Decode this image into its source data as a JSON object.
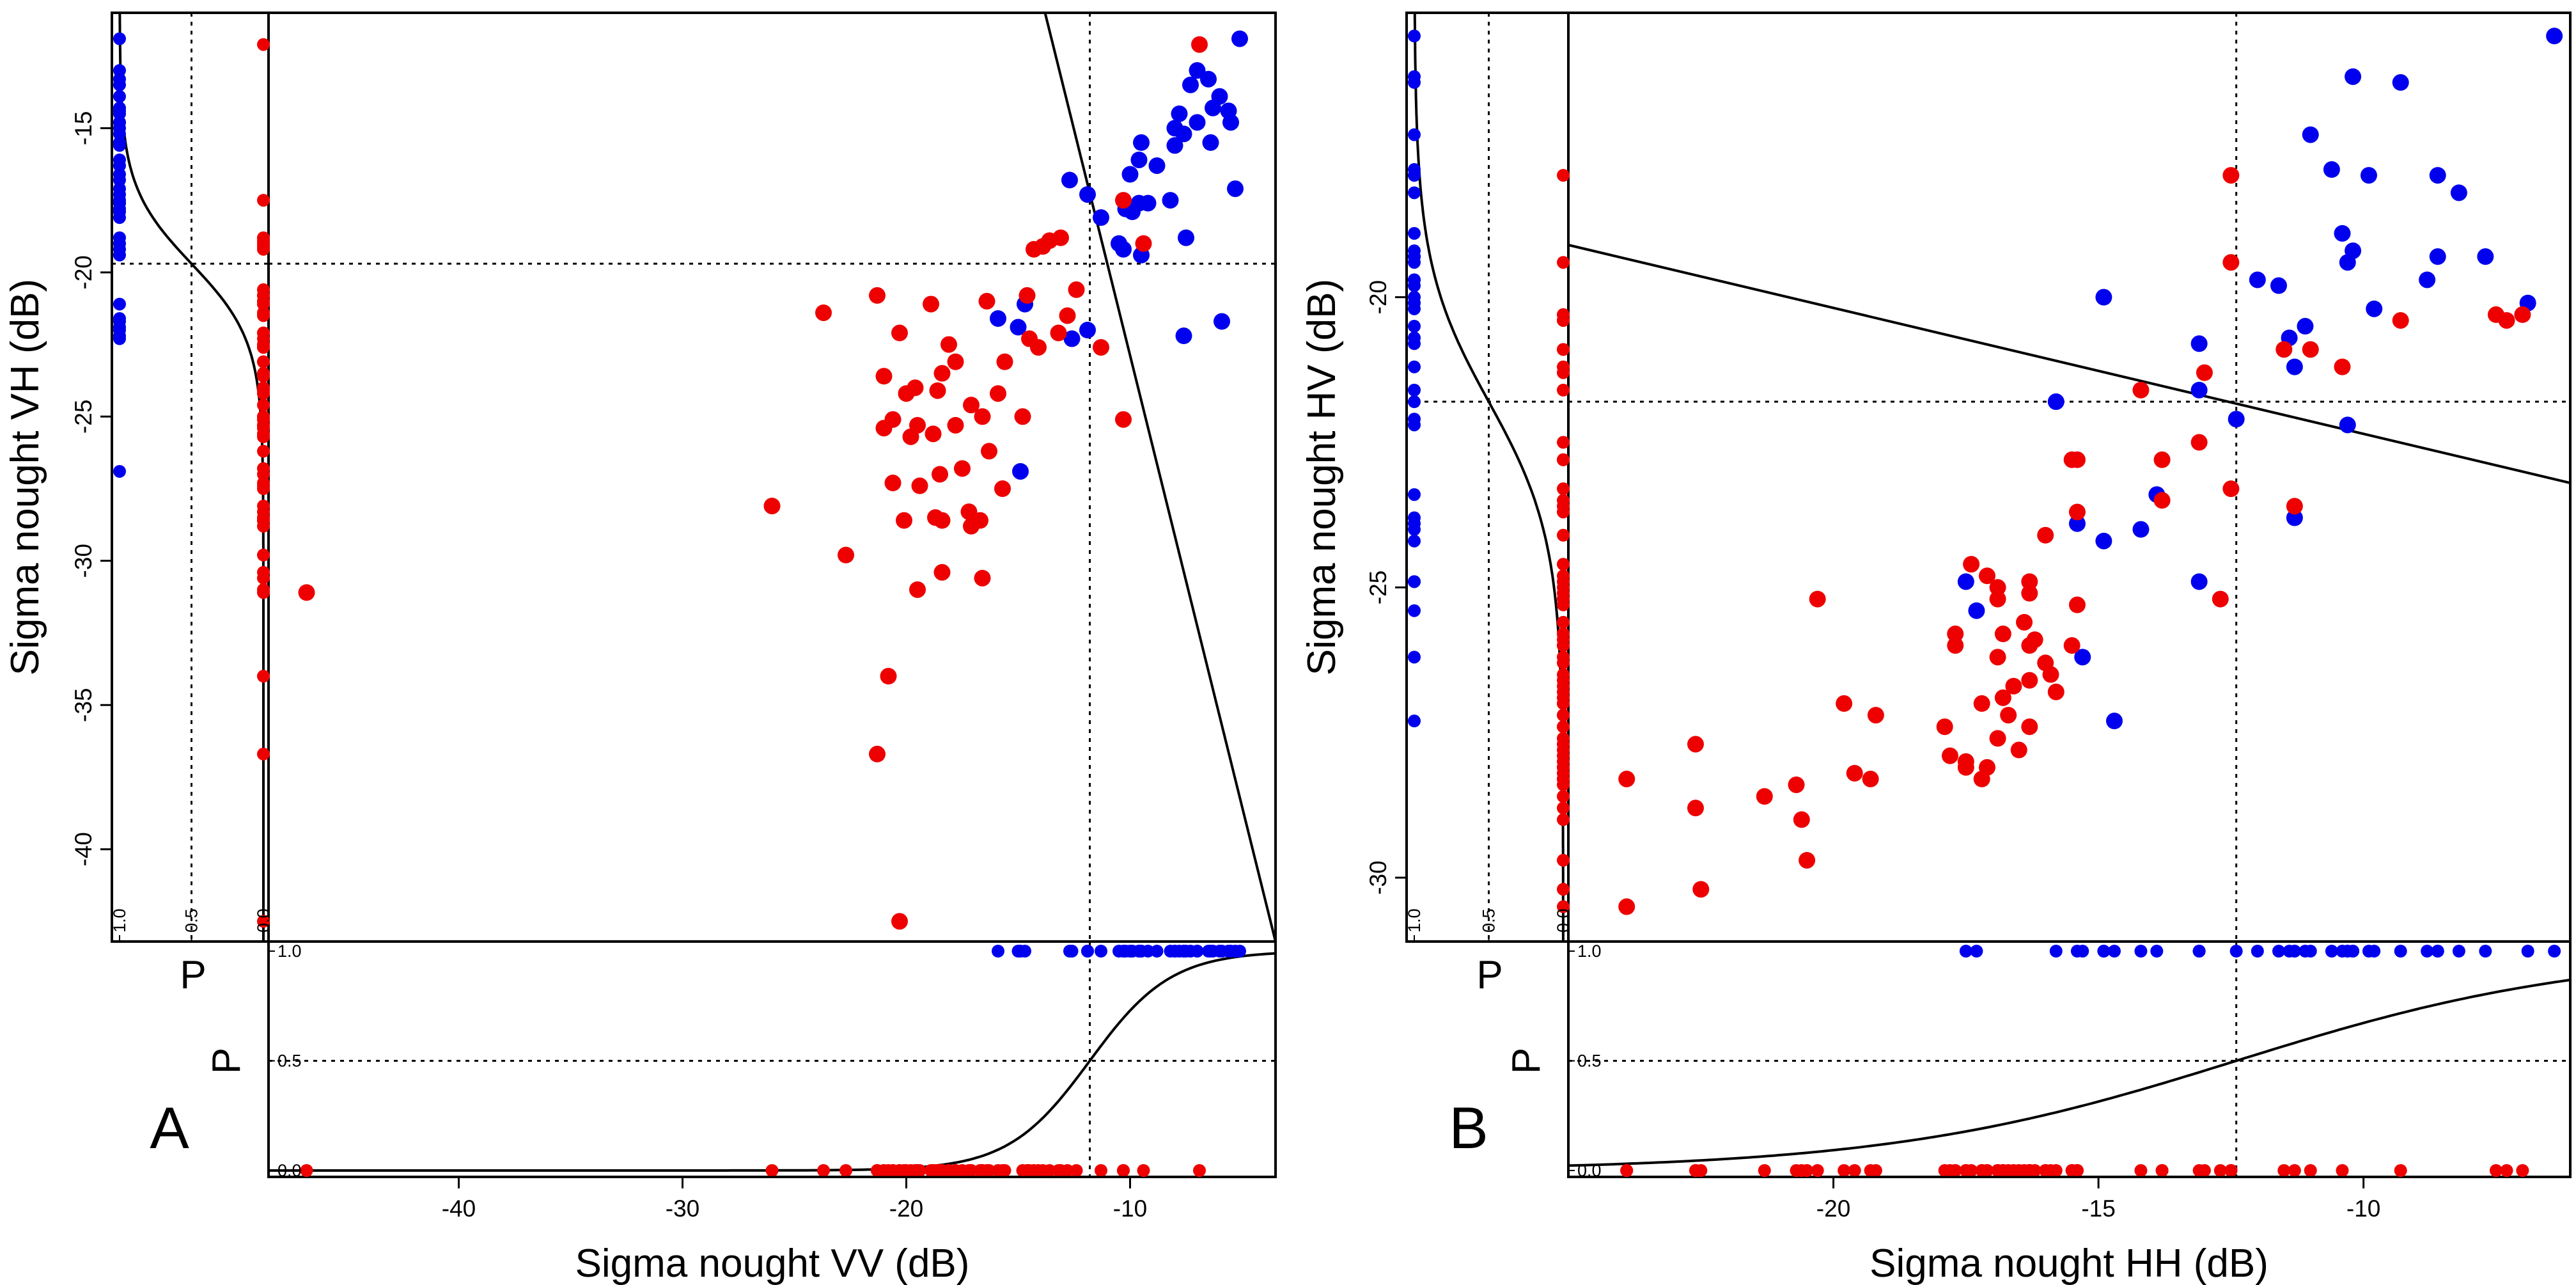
{
  "colors": {
    "class1": "#0000ee",
    "class0": "#ee0000",
    "line": "#000000"
  },
  "chart_data": [
    {
      "panel": "A",
      "type": "scatter",
      "xlabel": "Sigma nought VV (dB)",
      "ylabel": "Sigma nought VH (dB)",
      "xticks": [
        "-40",
        "-30",
        "-20",
        "-10"
      ],
      "yticks": [
        "-15",
        "-20",
        "-25",
        "-30",
        "-35",
        "-40"
      ],
      "xlim": [
        -48.5,
        -3.5
      ],
      "ylim": [
        -43.2,
        -11
      ],
      "prob_label": "P",
      "prob_ticks": [
        "0.0",
        "0.5",
        "1.0"
      ],
      "threshold_x": -11.8,
      "threshold_y": -19.7,
      "boundary": [
        [
          -13.8,
          -11
        ],
        [
          -3.5,
          -43.2
        ]
      ],
      "series": [
        {
          "class": "class1",
          "points": [
            [
              -5.1,
              -11.9
            ],
            [
              -7.0,
              -13.0
            ],
            [
              -6.5,
              -13.3
            ],
            [
              -7.3,
              -13.5
            ],
            [
              -6.0,
              -13.9
            ],
            [
              -6.3,
              -14.3
            ],
            [
              -5.6,
              -14.4
            ],
            [
              -7.8,
              -14.5
            ],
            [
              -5.5,
              -14.8
            ],
            [
              -7.0,
              -14.8
            ],
            [
              -8.0,
              -15.0
            ],
            [
              -7.6,
              -15.2
            ],
            [
              -9.5,
              -15.5
            ],
            [
              -6.4,
              -15.5
            ],
            [
              -8.0,
              -15.6
            ],
            [
              -9.6,
              -16.1
            ],
            [
              -8.8,
              -16.3
            ],
            [
              -10.0,
              -16.6
            ],
            [
              -12.7,
              -16.8
            ],
            [
              -11.9,
              -17.3
            ],
            [
              -8.2,
              -17.5
            ],
            [
              -9.2,
              -17.6
            ],
            [
              -9.6,
              -17.6
            ],
            [
              -10.2,
              -17.8
            ],
            [
              -9.9,
              -17.9
            ],
            [
              -11.3,
              -18.1
            ],
            [
              -7.5,
              -18.8
            ],
            [
              -5.3,
              -17.1
            ],
            [
              -10.5,
              -19.0
            ],
            [
              -10.3,
              -19.2
            ],
            [
              -9.5,
              -19.4
            ],
            [
              -15.9,
              -21.6
            ],
            [
              -7.6,
              -22.2
            ],
            [
              -5.9,
              -21.7
            ],
            [
              -12.6,
              -22.3
            ],
            [
              -14.7,
              -21.1
            ],
            [
              -15.0,
              -21.9
            ],
            [
              -11.9,
              -22.0
            ],
            [
              -14.9,
              -26.9
            ]
          ]
        },
        {
          "class": "class0",
          "points": [
            [
              -6.9,
              -12.1
            ],
            [
              -10.3,
              -17.5
            ],
            [
              -9.4,
              -19.0
            ],
            [
              -13.1,
              -18.8
            ],
            [
              -13.6,
              -18.9
            ],
            [
              -13.9,
              -19.1
            ],
            [
              -14.3,
              -19.2
            ],
            [
              -12.4,
              -20.6
            ],
            [
              -14.6,
              -20.8
            ],
            [
              -16.4,
              -21.0
            ],
            [
              -18.9,
              -21.1
            ],
            [
              -21.3,
              -20.8
            ],
            [
              -23.7,
              -21.4
            ],
            [
              -12.8,
              -21.5
            ],
            [
              -13.2,
              -22.1
            ],
            [
              -20.3,
              -22.1
            ],
            [
              -14.5,
              -22.3
            ],
            [
              -18.1,
              -22.5
            ],
            [
              -14.1,
              -22.6
            ],
            [
              -11.3,
              -22.6
            ],
            [
              -17.8,
              -23.1
            ],
            [
              -15.6,
              -23.1
            ],
            [
              -18.4,
              -23.5
            ],
            [
              -21.0,
              -23.6
            ],
            [
              -19.6,
              -24.0
            ],
            [
              -18.6,
              -24.1
            ],
            [
              -20.0,
              -24.2
            ],
            [
              -15.9,
              -24.2
            ],
            [
              -17.1,
              -24.6
            ],
            [
              -16.6,
              -25.0
            ],
            [
              -20.6,
              -25.1
            ],
            [
              -19.5,
              -25.3
            ],
            [
              -17.8,
              -25.3
            ],
            [
              -14.8,
              -25.0
            ],
            [
              -10.3,
              -25.1
            ],
            [
              -18.8,
              -25.6
            ],
            [
              -19.8,
              -25.7
            ],
            [
              -21.0,
              -25.4
            ],
            [
              -16.3,
              -26.2
            ],
            [
              -17.5,
              -26.8
            ],
            [
              -18.5,
              -27.0
            ],
            [
              -20.6,
              -27.3
            ],
            [
              -19.4,
              -27.4
            ],
            [
              -15.7,
              -27.5
            ],
            [
              -26.0,
              -28.1
            ],
            [
              -17.2,
              -28.3
            ],
            [
              -18.7,
              -28.5
            ],
            [
              -18.4,
              -28.6
            ],
            [
              -20.1,
              -28.6
            ],
            [
              -16.7,
              -28.6
            ],
            [
              -17.1,
              -28.8
            ],
            [
              -22.7,
              -29.8
            ],
            [
              -18.4,
              -30.4
            ],
            [
              -16.6,
              -30.6
            ],
            [
              -19.5,
              -31.0
            ],
            [
              -46.8,
              -31.1
            ],
            [
              -20.8,
              -34.0
            ],
            [
              -21.3,
              -36.7
            ],
            [
              -20.3,
              -42.5
            ]
          ]
        }
      ]
    },
    {
      "panel": "B",
      "type": "scatter",
      "xlabel": "Sigma nought HH (dB)",
      "ylabel": "Sigma nought HV (dB)",
      "xticks": [
        "-20",
        "-15",
        "-10"
      ],
      "yticks": [
        "-20",
        "-25",
        "-30"
      ],
      "xlim": [
        -25,
        -6.1
      ],
      "ylim": [
        -31.1,
        -15.1
      ],
      "prob_label": "P",
      "prob_ticks": [
        "0.0",
        "0.5",
        "1.0"
      ],
      "threshold_x": -12.4,
      "threshold_y": -21.8,
      "boundary": [
        [
          -25,
          -19.1
        ],
        [
          -6.1,
          -23.2
        ]
      ],
      "series": [
        {
          "class": "class1",
          "points": [
            [
              -6.4,
              -15.5
            ],
            [
              -10.2,
              -16.2
            ],
            [
              -9.3,
              -16.3
            ],
            [
              -11.0,
              -17.2
            ],
            [
              -10.6,
              -17.8
            ],
            [
              -9.9,
              -17.9
            ],
            [
              -8.6,
              -17.9
            ],
            [
              -8.2,
              -18.2
            ],
            [
              -10.4,
              -18.9
            ],
            [
              -10.2,
              -19.2
            ],
            [
              -8.6,
              -19.3
            ],
            [
              -10.3,
              -19.4
            ],
            [
              -7.7,
              -19.3
            ],
            [
              -12.0,
              -19.7
            ],
            [
              -11.6,
              -19.8
            ],
            [
              -8.8,
              -19.7
            ],
            [
              -9.8,
              -20.2
            ],
            [
              -11.1,
              -20.5
            ],
            [
              -11.4,
              -20.7
            ],
            [
              -14.9,
              -20.0
            ],
            [
              -6.9,
              -20.1
            ],
            [
              -13.1,
              -20.8
            ],
            [
              -11.3,
              -21.2
            ],
            [
              -13.1,
              -21.6
            ],
            [
              -15.8,
              -21.8
            ],
            [
              -12.4,
              -22.1
            ],
            [
              -10.3,
              -22.2
            ],
            [
              -13.9,
              -23.4
            ],
            [
              -14.2,
              -24.0
            ],
            [
              -14.9,
              -24.2
            ],
            [
              -11.3,
              -23.8
            ],
            [
              -15.4,
              -23.9
            ],
            [
              -13.1,
              -24.9
            ],
            [
              -17.5,
              -24.9
            ],
            [
              -17.3,
              -25.4
            ],
            [
              -15.3,
              -26.2
            ],
            [
              -14.7,
              -27.3
            ]
          ]
        },
        {
          "class": "class0",
          "points": [
            [
              -12.5,
              -17.9
            ],
            [
              -12.5,
              -19.4
            ],
            [
              -9.3,
              -20.4
            ],
            [
              -7.5,
              -20.3
            ],
            [
              -7.0,
              -20.3
            ],
            [
              -7.3,
              -20.4
            ],
            [
              -11.5,
              -20.9
            ],
            [
              -11.0,
              -20.9
            ],
            [
              -10.4,
              -21.2
            ],
            [
              -13.0,
              -21.3
            ],
            [
              -14.2,
              -21.6
            ],
            [
              -13.1,
              -22.5
            ],
            [
              -15.5,
              -22.8
            ],
            [
              -15.4,
              -22.8
            ],
            [
              -13.8,
              -22.8
            ],
            [
              -12.5,
              -23.3
            ],
            [
              -13.8,
              -23.5
            ],
            [
              -11.3,
              -23.6
            ],
            [
              -15.4,
              -23.7
            ],
            [
              -16.0,
              -24.1
            ],
            [
              -17.1,
              -24.8
            ],
            [
              -17.4,
              -24.6
            ],
            [
              -16.9,
              -25.0
            ],
            [
              -16.3,
              -24.9
            ],
            [
              -16.3,
              -25.1
            ],
            [
              -16.9,
              -25.2
            ],
            [
              -12.7,
              -25.2
            ],
            [
              -20.3,
              -25.2
            ],
            [
              -15.4,
              -25.3
            ],
            [
              -16.4,
              -25.6
            ],
            [
              -16.8,
              -25.8
            ],
            [
              -16.2,
              -25.9
            ],
            [
              -17.7,
              -25.8
            ],
            [
              -17.7,
              -26.0
            ],
            [
              -16.3,
              -26.0
            ],
            [
              -16.9,
              -26.2
            ],
            [
              -15.5,
              -26.0
            ],
            [
              -16.0,
              -26.3
            ],
            [
              -15.9,
              -26.5
            ],
            [
              -16.3,
              -26.6
            ],
            [
              -16.6,
              -26.7
            ],
            [
              -15.8,
              -26.8
            ],
            [
              -16.8,
              -26.9
            ],
            [
              -17.2,
              -27.0
            ],
            [
              -16.7,
              -27.2
            ],
            [
              -19.8,
              -27.0
            ],
            [
              -19.2,
              -27.2
            ],
            [
              -17.9,
              -27.4
            ],
            [
              -16.3,
              -27.4
            ],
            [
              -16.9,
              -27.6
            ],
            [
              -16.5,
              -27.8
            ],
            [
              -17.8,
              -27.9
            ],
            [
              -17.1,
              -28.1
            ],
            [
              -17.5,
              -28.0
            ],
            [
              -17.2,
              -28.3
            ],
            [
              -17.5,
              -28.1
            ],
            [
              -19.6,
              -28.2
            ],
            [
              -19.3,
              -28.3
            ],
            [
              -20.7,
              -28.4
            ],
            [
              -21.3,
              -28.6
            ],
            [
              -23.9,
              -28.3
            ],
            [
              -22.6,
              -27.7
            ],
            [
              -22.6,
              -28.8
            ],
            [
              -20.6,
              -29.0
            ],
            [
              -20.5,
              -29.7
            ],
            [
              -22.5,
              -30.2
            ],
            [
              -23.9,
              -30.5
            ]
          ]
        }
      ]
    }
  ]
}
